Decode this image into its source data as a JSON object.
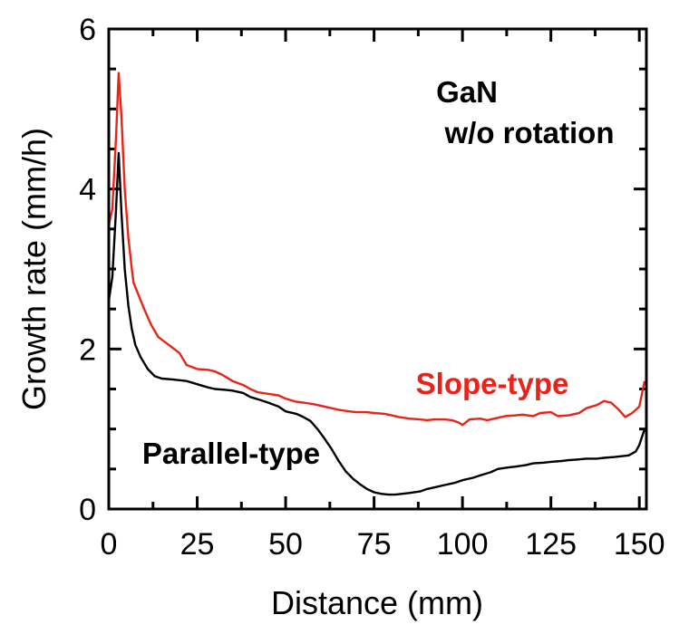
{
  "chart_data": {
    "type": "line",
    "xlabel": "Distance (mm)",
    "ylabel": "Growth rate (mm/h)",
    "xlim": [
      0,
      152
    ],
    "ylim": [
      0,
      6
    ],
    "x_ticks": [
      0,
      25,
      50,
      75,
      100,
      125,
      150
    ],
    "y_ticks": [
      0,
      2,
      4,
      6
    ],
    "annotations": [
      "GaN",
      "w/o rotation"
    ],
    "series": [
      {
        "name": "Slope-type",
        "color": "#e8231a",
        "points": [
          [
            0,
            3.55
          ],
          [
            1,
            3.75
          ],
          [
            2,
            4.6
          ],
          [
            2.8,
            5.45
          ],
          [
            3.6,
            4.9
          ],
          [
            4.5,
            4.0
          ],
          [
            5.5,
            3.4
          ],
          [
            6.5,
            3.0
          ],
          [
            7,
            2.83
          ],
          [
            8,
            2.72
          ],
          [
            10,
            2.5
          ],
          [
            12,
            2.3
          ],
          [
            14,
            2.15
          ],
          [
            17,
            2.05
          ],
          [
            20,
            1.95
          ],
          [
            22,
            1.8
          ],
          [
            25,
            1.75
          ],
          [
            28,
            1.74
          ],
          [
            30,
            1.72
          ],
          [
            32,
            1.68
          ],
          [
            35,
            1.6
          ],
          [
            38,
            1.55
          ],
          [
            40,
            1.5
          ],
          [
            42,
            1.46
          ],
          [
            45,
            1.44
          ],
          [
            48,
            1.42
          ],
          [
            50,
            1.38
          ],
          [
            53,
            1.34
          ],
          [
            55,
            1.33
          ],
          [
            58,
            1.31
          ],
          [
            60,
            1.29
          ],
          [
            63,
            1.26
          ],
          [
            65,
            1.24
          ],
          [
            68,
            1.22
          ],
          [
            70,
            1.21
          ],
          [
            73,
            1.21
          ],
          [
            75,
            1.2
          ],
          [
            78,
            1.19
          ],
          [
            80,
            1.17
          ],
          [
            82,
            1.15
          ],
          [
            85,
            1.13
          ],
          [
            88,
            1.12
          ],
          [
            90,
            1.11
          ],
          [
            92,
            1.12
          ],
          [
            95,
            1.12
          ],
          [
            97,
            1.11
          ],
          [
            99,
            1.08
          ],
          [
            100,
            1.05
          ],
          [
            102,
            1.12
          ],
          [
            105,
            1.13
          ],
          [
            107,
            1.11
          ],
          [
            110,
            1.14
          ],
          [
            112,
            1.16
          ],
          [
            115,
            1.17
          ],
          [
            117,
            1.18
          ],
          [
            120,
            1.16
          ],
          [
            122,
            1.2
          ],
          [
            125,
            1.21
          ],
          [
            127,
            1.16
          ],
          [
            130,
            1.17
          ],
          [
            133,
            1.2
          ],
          [
            135,
            1.26
          ],
          [
            138,
            1.3
          ],
          [
            140,
            1.35
          ],
          [
            142,
            1.33
          ],
          [
            144,
            1.25
          ],
          [
            146,
            1.15
          ],
          [
            148,
            1.2
          ],
          [
            150,
            1.28
          ],
          [
            151.5,
            1.6
          ]
        ]
      },
      {
        "name": "Parallel-type",
        "color": "#000000",
        "points": [
          [
            0,
            2.6
          ],
          [
            1,
            2.9
          ],
          [
            2,
            3.7
          ],
          [
            2.8,
            4.45
          ],
          [
            3.6,
            3.7
          ],
          [
            4.5,
            3.0
          ],
          [
            5.5,
            2.55
          ],
          [
            6.5,
            2.25
          ],
          [
            7.5,
            2.05
          ],
          [
            9,
            1.9
          ],
          [
            11,
            1.75
          ],
          [
            13,
            1.66
          ],
          [
            15,
            1.63
          ],
          [
            18,
            1.62
          ],
          [
            20,
            1.61
          ],
          [
            22,
            1.6
          ],
          [
            25,
            1.56
          ],
          [
            28,
            1.52
          ],
          [
            30,
            1.5
          ],
          [
            33,
            1.49
          ],
          [
            35,
            1.48
          ],
          [
            38,
            1.45
          ],
          [
            40,
            1.4
          ],
          [
            43,
            1.36
          ],
          [
            45,
            1.33
          ],
          [
            48,
            1.28
          ],
          [
            50,
            1.22
          ],
          [
            53,
            1.19
          ],
          [
            55,
            1.15
          ],
          [
            57,
            1.1
          ],
          [
            59,
            1.0
          ],
          [
            61,
            0.88
          ],
          [
            63,
            0.75
          ],
          [
            65,
            0.6
          ],
          [
            67,
            0.47
          ],
          [
            69,
            0.38
          ],
          [
            71,
            0.31
          ],
          [
            73,
            0.25
          ],
          [
            75,
            0.21
          ],
          [
            77,
            0.19
          ],
          [
            79,
            0.18
          ],
          [
            81,
            0.18
          ],
          [
            83,
            0.19
          ],
          [
            85,
            0.2
          ],
          [
            88,
            0.22
          ],
          [
            90,
            0.25
          ],
          [
            93,
            0.28
          ],
          [
            95,
            0.3
          ],
          [
            98,
            0.33
          ],
          [
            100,
            0.36
          ],
          [
            103,
            0.39
          ],
          [
            105,
            0.42
          ],
          [
            108,
            0.46
          ],
          [
            110,
            0.5
          ],
          [
            113,
            0.52
          ],
          [
            115,
            0.53
          ],
          [
            118,
            0.55
          ],
          [
            120,
            0.57
          ],
          [
            123,
            0.58
          ],
          [
            125,
            0.59
          ],
          [
            128,
            0.6
          ],
          [
            130,
            0.61
          ],
          [
            133,
            0.62
          ],
          [
            135,
            0.63
          ],
          [
            138,
            0.63
          ],
          [
            140,
            0.64
          ],
          [
            143,
            0.65
          ],
          [
            145,
            0.66
          ],
          [
            147,
            0.67
          ],
          [
            149,
            0.72
          ],
          [
            150,
            0.8
          ],
          [
            151.5,
            1.0
          ]
        ]
      }
    ]
  }
}
